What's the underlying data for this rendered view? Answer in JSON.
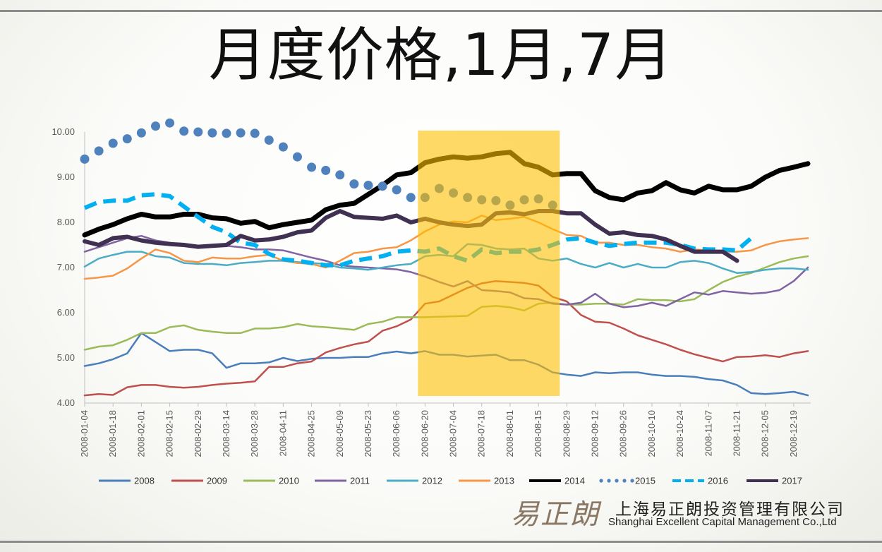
{
  "title": "月度价格,1月,7月",
  "company": {
    "logo_text": "易正朗",
    "name_cn": "上海易正朗投资管理有限公司",
    "name_en": "Shanghai Excellent Capital Management Co.,Ltd"
  },
  "chart_data": {
    "type": "line",
    "title": "月度价格,1月,7月",
    "ylim": [
      4.0,
      10.0
    ],
    "yticks": [
      "4.00",
      "5.00",
      "6.00",
      "7.00",
      "8.00",
      "9.00",
      "10.00"
    ],
    "xticks": [
      "2008-01-04",
      "2008-01-18",
      "2008-02-01",
      "2008-02-15",
      "2008-02-29",
      "2008-03-14",
      "2008-03-28",
      "2008-04-11",
      "2008-04-25",
      "2008-05-09",
      "2008-05-23",
      "2008-06-06",
      "2008-06-20",
      "2008-07-04",
      "2008-07-18",
      "2008-08-01",
      "2008-08-15",
      "2008-08-29",
      "2008-09-12",
      "2008-09-26",
      "2008-10-10",
      "2008-10-24",
      "2008-11-07",
      "2008-11-21",
      "2008-12-05",
      "2008-12-19"
    ],
    "weeks": 52,
    "grid": false,
    "legend_position": "bottom",
    "highlight": {
      "from_week": 23.5,
      "to_week": 33.5,
      "color": "#ffc000"
    },
    "series": [
      {
        "name": "2008",
        "color": "#4a7ebb",
        "style": "solid",
        "width": 2.5,
        "values": [
          4.82,
          4.88,
          4.97,
          5.1,
          5.55,
          5.35,
          5.15,
          5.18,
          5.18,
          5.1,
          4.78,
          4.88,
          4.88,
          4.9,
          5.0,
          4.93,
          4.98,
          5.0,
          5.0,
          5.02,
          5.02,
          5.1,
          5.14,
          5.1,
          5.15,
          5.07,
          5.07,
          5.03,
          5.05,
          5.07,
          4.95,
          4.95,
          4.85,
          4.68,
          4.63,
          4.6,
          4.68,
          4.66,
          4.68,
          4.68,
          4.63,
          4.6,
          4.6,
          4.58,
          4.53,
          4.5,
          4.4,
          4.22,
          4.2,
          4.22,
          4.25,
          4.17
        ]
      },
      {
        "name": "2009",
        "color": "#c0504d",
        "style": "solid",
        "width": 2.5,
        "values": [
          4.17,
          4.2,
          4.18,
          4.35,
          4.4,
          4.4,
          4.36,
          4.34,
          4.36,
          4.4,
          4.43,
          4.45,
          4.48,
          4.8,
          4.8,
          4.88,
          4.92,
          5.12,
          5.22,
          5.3,
          5.36,
          5.6,
          5.7,
          5.85,
          6.2,
          6.25,
          6.4,
          6.55,
          6.65,
          6.7,
          6.68,
          6.66,
          6.6,
          6.35,
          6.25,
          5.95,
          5.8,
          5.78,
          5.65,
          5.5,
          5.4,
          5.3,
          5.18,
          5.08,
          5.0,
          4.92,
          5.02,
          5.03,
          5.06,
          5.02,
          5.1,
          5.15
        ]
      },
      {
        "name": "2010",
        "color": "#9bbb59",
        "style": "solid",
        "width": 2.5,
        "values": [
          5.18,
          5.25,
          5.28,
          5.4,
          5.55,
          5.55,
          5.68,
          5.72,
          5.62,
          5.58,
          5.55,
          5.55,
          5.65,
          5.65,
          5.68,
          5.75,
          5.7,
          5.68,
          5.65,
          5.62,
          5.75,
          5.8,
          5.9,
          5.9,
          5.9,
          5.91,
          5.92,
          5.93,
          6.13,
          6.15,
          6.12,
          6.05,
          6.2,
          6.22,
          6.18,
          6.18,
          6.2,
          6.2,
          6.18,
          6.3,
          6.28,
          6.28,
          6.25,
          6.3,
          6.5,
          6.68,
          6.8,
          6.88,
          7.0,
          7.12,
          7.2,
          7.25
        ]
      },
      {
        "name": "2011",
        "color": "#8064a2",
        "style": "solid",
        "width": 2.5,
        "values": [
          7.35,
          7.45,
          7.55,
          7.65,
          7.7,
          7.6,
          7.55,
          7.5,
          7.48,
          7.5,
          7.48,
          7.45,
          7.4,
          7.4,
          7.38,
          7.3,
          7.22,
          7.15,
          7.05,
          7.02,
          7.0,
          6.98,
          6.96,
          6.9,
          6.8,
          6.68,
          6.58,
          6.7,
          6.5,
          6.48,
          6.45,
          6.32,
          6.3,
          6.2,
          6.18,
          6.22,
          6.42,
          6.2,
          6.12,
          6.15,
          6.22,
          6.15,
          6.3,
          6.45,
          6.4,
          6.48,
          6.45,
          6.42,
          6.44,
          6.5,
          6.7,
          7.0
        ]
      },
      {
        "name": "2012",
        "color": "#4bacc6",
        "style": "solid",
        "width": 2.5,
        "values": [
          7.02,
          7.2,
          7.28,
          7.35,
          7.35,
          7.25,
          7.22,
          7.1,
          7.08,
          7.08,
          7.05,
          7.1,
          7.12,
          7.15,
          7.15,
          7.12,
          7.1,
          7.08,
          7.0,
          6.98,
          6.95,
          7.0,
          7.05,
          7.08,
          7.25,
          7.28,
          7.25,
          7.52,
          7.5,
          7.42,
          7.4,
          7.42,
          7.2,
          7.15,
          7.2,
          7.08,
          7.0,
          7.1,
          7.0,
          7.08,
          7.0,
          7.0,
          7.12,
          7.15,
          7.1,
          6.98,
          6.88,
          6.9,
          6.95,
          6.98,
          6.98,
          6.95
        ]
      },
      {
        "name": "2013",
        "color": "#f79646",
        "style": "solid",
        "width": 2.5,
        "values": [
          6.75,
          6.78,
          6.82,
          6.98,
          7.2,
          7.4,
          7.32,
          7.15,
          7.12,
          7.22,
          7.2,
          7.2,
          7.25,
          7.28,
          7.15,
          7.1,
          7.08,
          7.0,
          7.15,
          7.32,
          7.35,
          7.42,
          7.45,
          7.6,
          7.8,
          7.95,
          8.02,
          8.0,
          8.15,
          8.05,
          8.08,
          8.12,
          8.0,
          7.85,
          7.72,
          7.7,
          7.55,
          7.55,
          7.5,
          7.5,
          7.45,
          7.42,
          7.35,
          7.4,
          7.38,
          7.35,
          7.35,
          7.38,
          7.5,
          7.58,
          7.62,
          7.65
        ]
      },
      {
        "name": "2014",
        "color": "#000000",
        "style": "solid",
        "width": 7,
        "values": [
          7.72,
          7.85,
          7.95,
          8.08,
          8.18,
          8.12,
          8.12,
          8.18,
          8.18,
          8.1,
          8.08,
          7.98,
          8.02,
          7.88,
          7.95,
          8.0,
          8.05,
          8.28,
          8.38,
          8.42,
          8.62,
          8.82,
          9.05,
          9.1,
          9.32,
          9.4,
          9.45,
          9.42,
          9.45,
          9.52,
          9.55,
          9.3,
          9.22,
          9.05,
          9.08,
          9.08,
          8.7,
          8.55,
          8.5,
          8.65,
          8.7,
          8.88,
          8.72,
          8.65,
          8.8,
          8.72,
          8.72,
          8.8,
          9.0,
          9.15,
          9.22,
          9.3
        ]
      },
      {
        "name": "2015",
        "color": "#4f81bd",
        "style": "dotted",
        "width": 13,
        "values": [
          9.4,
          9.58,
          9.75,
          9.85,
          9.98,
          10.13,
          10.2,
          10.02,
          10.0,
          9.98,
          9.97,
          9.98,
          9.97,
          9.82,
          9.67,
          9.45,
          9.22,
          9.15,
          9.05,
          8.85,
          8.82,
          8.8,
          8.72,
          8.55,
          8.55,
          8.75,
          8.65,
          8.55,
          8.5,
          8.48,
          8.38,
          8.5,
          8.52,
          8.38
        ]
      },
      {
        "name": "2016",
        "color": "#00b0f0",
        "style": "dashed",
        "width": 6,
        "values": [
          8.32,
          8.45,
          8.48,
          8.48,
          8.6,
          8.62,
          8.58,
          8.35,
          8.12,
          7.9,
          7.78,
          7.55,
          7.5,
          7.3,
          7.18,
          7.15,
          7.1,
          7.05,
          7.05,
          7.15,
          7.2,
          7.25,
          7.35,
          7.38,
          7.35,
          7.42,
          7.25,
          7.15,
          7.4,
          7.32,
          7.35,
          7.35,
          7.4,
          7.5,
          7.62,
          7.65,
          7.55,
          7.48,
          7.52,
          7.55,
          7.55,
          7.55,
          7.5,
          7.42,
          7.4,
          7.4,
          7.38,
          7.65
        ]
      },
      {
        "name": "2017",
        "color": "#403152",
        "style": "solid",
        "width": 6,
        "values": [
          7.58,
          7.5,
          7.65,
          7.68,
          7.6,
          7.55,
          7.52,
          7.5,
          7.46,
          7.48,
          7.5,
          7.7,
          7.6,
          7.62,
          7.68,
          7.78,
          7.82,
          8.1,
          8.25,
          8.12,
          8.1,
          8.08,
          8.15,
          8.0,
          8.08,
          8.0,
          7.95,
          7.92,
          7.95,
          8.2,
          8.22,
          8.18,
          8.25,
          8.25,
          8.2,
          8.2,
          7.95,
          7.75,
          7.78,
          7.72,
          7.7,
          7.62,
          7.48,
          7.35,
          7.35,
          7.35,
          7.15
        ]
      }
    ]
  }
}
